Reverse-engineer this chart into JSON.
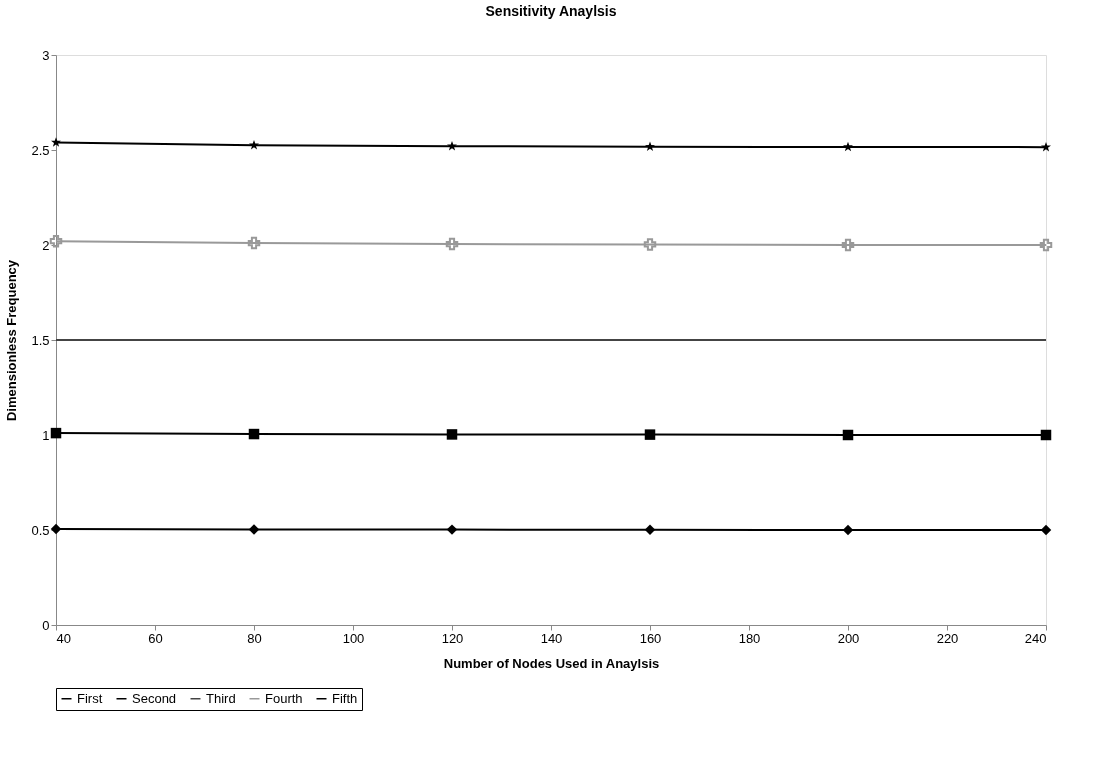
{
  "chart_data": {
    "type": "line",
    "title": "Sensitivity Anaylsis",
    "xlabel": "Number of Nodes Used in Anaylsis",
    "ylabel": "Dimensionless Frequency",
    "x": [
      40,
      80,
      120,
      160,
      200,
      240
    ],
    "series": [
      {
        "name": "First",
        "color": "#000000",
        "marker": "diamond",
        "values": [
          0.505,
          0.503,
          0.502,
          0.501,
          0.5,
          0.5
        ]
      },
      {
        "name": "Second",
        "color": "#000000",
        "marker": "square",
        "values": [
          1.01,
          1.005,
          1.003,
          1.002,
          1.0,
          1.0
        ]
      },
      {
        "name": "Third",
        "color": "#444444",
        "marker": "none",
        "values": [
          1.5,
          1.5,
          1.5,
          1.5,
          1.5,
          1.5
        ]
      },
      {
        "name": "Fourth",
        "color": "#999999",
        "marker": "cross",
        "values": [
          2.02,
          2.01,
          2.005,
          2.003,
          2.0,
          2.0
        ]
      },
      {
        "name": "Fifth",
        "color": "#000000",
        "marker": "star",
        "values": [
          2.54,
          2.525,
          2.52,
          2.517,
          2.516,
          2.515
        ]
      }
    ],
    "xlim": [
      40,
      240
    ],
    "xticks": [
      40,
      60,
      80,
      100,
      120,
      140,
      160,
      180,
      200,
      220,
      240
    ],
    "ylim": [
      0,
      3
    ],
    "yticks": [
      0,
      0.5,
      1,
      1.5,
      2,
      2.5,
      3
    ],
    "grid": false,
    "legend": "bottom",
    "line_style": "solid"
  }
}
